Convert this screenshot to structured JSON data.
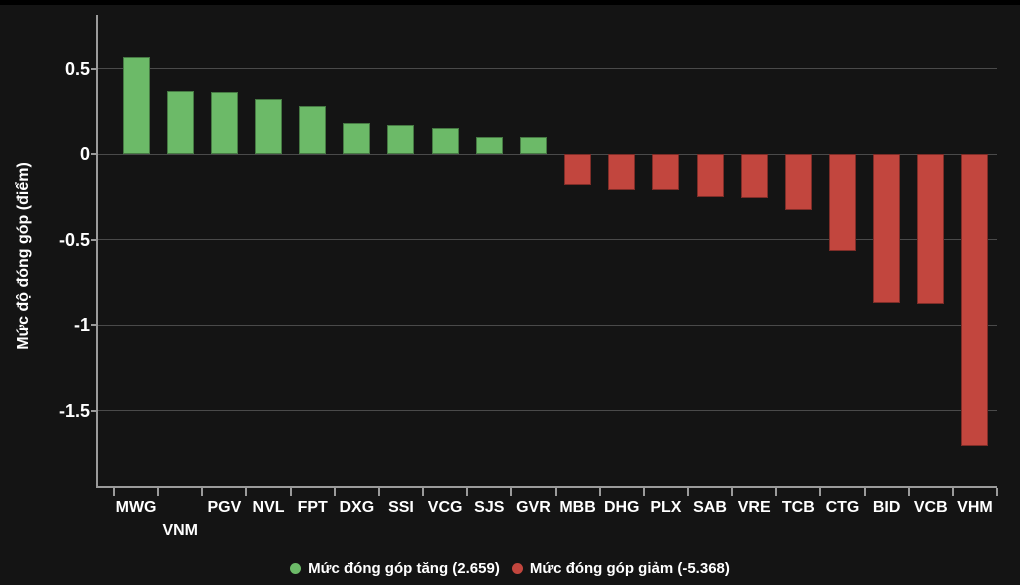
{
  "chart_data": {
    "type": "bar",
    "categories": [
      "MWG",
      "VNM",
      "PGV",
      "NVL",
      "FPT",
      "DXG",
      "SSI",
      "VCG",
      "SJS",
      "GVR",
      "MBB",
      "DHG",
      "PLX",
      "SAB",
      "VRE",
      "TCB",
      "CTG",
      "BID",
      "VCB",
      "VHM"
    ],
    "values": [
      0.57,
      0.37,
      0.36,
      0.32,
      0.28,
      0.18,
      0.17,
      0.15,
      0.1,
      0.1,
      -0.18,
      -0.21,
      -0.21,
      -0.25,
      -0.26,
      -0.33,
      -0.57,
      -0.87,
      -0.88,
      -1.71
    ],
    "title": "",
    "xlabel": "",
    "ylabel": "Mức độ đóng góp (điểm)",
    "yticks": [
      {
        "value": 0.5,
        "label": "0.5"
      },
      {
        "value": 0,
        "label": "0"
      },
      {
        "value": -0.5,
        "label": "-0.5"
      },
      {
        "value": -1,
        "label": "-1"
      },
      {
        "value": -1.5,
        "label": "-1.5"
      }
    ],
    "ylim": [
      -1.94,
      0.81
    ],
    "grid": true,
    "legend_position": "bottom-center",
    "colors": {
      "positive": "#6cba68",
      "negative": "#c2463e",
      "background": "#141414",
      "gridline": "#4a4a4a",
      "axis": "#9b9b9b",
      "text": "#ffffff"
    },
    "legend": [
      {
        "label": "Mức đóng góp tăng (2.659)",
        "color": "#6cba68"
      },
      {
        "label": "Mức đóng góp giảm (-5.368)",
        "color": "#c2463e"
      }
    ]
  }
}
